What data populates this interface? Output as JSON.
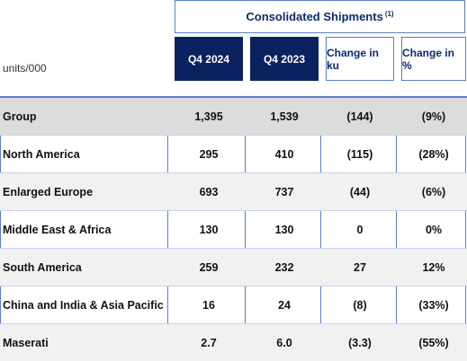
{
  "header": {
    "title": "Consolidated Shipments",
    "title_note": "(1)",
    "units": "units/000"
  },
  "columns": [
    "Q4 2024",
    "Q4 2023",
    "Change in ku",
    "Change in %"
  ],
  "rows": [
    {
      "label": "Group",
      "q4_2024": "1,395",
      "q4_2023": "1,539",
      "change_ku": "(144)",
      "change_pct": "(9%)"
    },
    {
      "label": "North America",
      "q4_2024": "295",
      "q4_2023": "410",
      "change_ku": "(115)",
      "change_pct": "(28%)"
    },
    {
      "label": "Enlarged Europe",
      "q4_2024": "693",
      "q4_2023": "737",
      "change_ku": "(44)",
      "change_pct": "(6%)"
    },
    {
      "label": "Middle East & Africa",
      "q4_2024": "130",
      "q4_2023": "130",
      "change_ku": "0",
      "change_pct": "0%"
    },
    {
      "label": "South America",
      "q4_2024": "259",
      "q4_2023": "232",
      "change_ku": "27",
      "change_pct": "12%"
    },
    {
      "label": "China and India & Asia Pacific",
      "q4_2024": "16",
      "q4_2023": "24",
      "change_ku": "(8)",
      "change_pct": "(33%)"
    },
    {
      "label": "Maserati",
      "q4_2024": "2.7",
      "q4_2023": "6.0",
      "change_ku": "(3.3)",
      "change_pct": "(55%)"
    }
  ],
  "colors": {
    "header_dark": "#0b2260",
    "border_blue": "#5b7fc6",
    "title_text": "#0d2a6b",
    "group_row_bg": "#dcdcdc",
    "alt_row_bg": "#f1f1f1"
  }
}
